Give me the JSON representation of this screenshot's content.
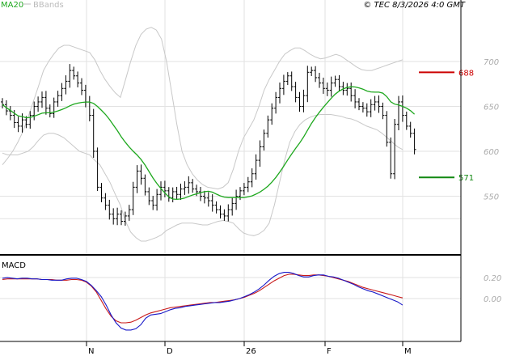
{
  "header": {
    "ma_label": "MA20",
    "bbands_label": "BBands",
    "copyright": "© TEC 8/3/2026 4:0 GMT"
  },
  "macd_panel": {
    "label": "MACD"
  },
  "colors": {
    "ma_line": "#1ea81e",
    "bbands": "#c8c8c8",
    "price_bars": "#000000",
    "macd_line": "#1818c8",
    "signal_line": "#c81818",
    "resistance": "#cc0000",
    "support": "#118811",
    "grid": "#e2e2e2",
    "axis_text": "#aaaaaa"
  },
  "chart_data": [
    {
      "type": "bar",
      "subtype": "ohlc-daily",
      "title": "",
      "y_ticks": [
        550,
        600,
        650,
        700
      ],
      "ylim": [
        505,
        730
      ],
      "x_ticks": [
        "N",
        "D",
        "26",
        "F",
        "M"
      ],
      "indicators": [
        "MA20",
        "BBands"
      ],
      "levels": [
        {
          "name": "resistance",
          "value": 688,
          "label": "688"
        },
        {
          "name": "support",
          "value": 571,
          "label": "571"
        }
      ],
      "closes": [
        652,
        645,
        640,
        632,
        628,
        635,
        630,
        640,
        650,
        655,
        660,
        648,
        642,
        655,
        662,
        670,
        678,
        690,
        684,
        676,
        668,
        655,
        640,
        600,
        560,
        548,
        540,
        530,
        525,
        530,
        522,
        528,
        535,
        560,
        578,
        570,
        555,
        545,
        540,
        552,
        560,
        556,
        548,
        555,
        552,
        558,
        560,
        565,
        558,
        555,
        550,
        548,
        545,
        540,
        535,
        530,
        528,
        535,
        542,
        550,
        556,
        560,
        566,
        575,
        590,
        605,
        620,
        635,
        648,
        660,
        670,
        678,
        684,
        672,
        660,
        650,
        662,
        688,
        690,
        682,
        676,
        670,
        668,
        676,
        680,
        672,
        668,
        670,
        662,
        655,
        650,
        648,
        644,
        652,
        655,
        650,
        640,
        610,
        575,
        630,
        655,
        640,
        628,
        620,
        602
      ],
      "bbands_upper": [
        585,
        592,
        600,
        610,
        622,
        638,
        655,
        672,
        690,
        700,
        708,
        715,
        718,
        718,
        716,
        714,
        712,
        710,
        702,
        690,
        680,
        672,
        665,
        660,
        680,
        700,
        718,
        730,
        736,
        738,
        735,
        725,
        700,
        665,
        630,
        600,
        585,
        575,
        568,
        563,
        560,
        559,
        558,
        560,
        565,
        580,
        600,
        615,
        625,
        635,
        650,
        668,
        680,
        690,
        700,
        708,
        712,
        715,
        715,
        712,
        708,
        705,
        703,
        704,
        706,
        708,
        706,
        702,
        698,
        694,
        691,
        690,
        690,
        692,
        694,
        696,
        698,
        700,
        702
      ],
      "bbands_lower": [
        598,
        596,
        596,
        596,
        598,
        600,
        605,
        612,
        618,
        620,
        620,
        618,
        615,
        610,
        605,
        600,
        598,
        596,
        590,
        585,
        575,
        565,
        552,
        540,
        522,
        510,
        504,
        500,
        500,
        502,
        504,
        507,
        512,
        515,
        518,
        520,
        520,
        520,
        519,
        518,
        518,
        520,
        522,
        523,
        522,
        520,
        514,
        509,
        507,
        506,
        508,
        512,
        520,
        540,
        565,
        590,
        610,
        622,
        630,
        635,
        638,
        640,
        641,
        641,
        641,
        640,
        639,
        637,
        636,
        634,
        631,
        628,
        626,
        624,
        620,
        615,
        610,
        605,
        602
      ],
      "macd": [
        31,
        32,
        31,
        30,
        31,
        31,
        30,
        30,
        29,
        29,
        28,
        28,
        28,
        30,
        31,
        31,
        29,
        26,
        20,
        12,
        3,
        -10,
        -25,
        -37,
        -45,
        -48,
        -48,
        -46,
        -40,
        -30,
        -25,
        -24,
        -23,
        -20,
        -17,
        -15,
        -14,
        -12,
        -11,
        -10,
        -9,
        -8,
        -7,
        -6,
        -6,
        -5,
        -4,
        -2,
        0,
        3,
        6,
        10,
        15,
        21,
        28,
        34,
        38,
        40,
        40,
        38,
        35,
        33,
        33,
        35,
        36,
        36,
        34,
        33,
        31,
        28,
        25,
        22,
        18,
        15,
        12,
        10,
        7,
        4,
        1,
        -2,
        -5,
        -10
      ],
      "macd_signal": [
        29,
        30,
        30,
        30,
        30,
        30,
        30,
        30,
        29,
        29,
        29,
        28,
        28,
        28,
        29,
        29,
        28,
        25,
        19,
        10,
        -3,
        -16,
        -27,
        -34,
        -37,
        -37,
        -36,
        -33,
        -29,
        -25,
        -22,
        -20,
        -18,
        -16,
        -14,
        -13,
        -12,
        -11,
        -10,
        -9,
        -8,
        -7,
        -6,
        -6,
        -5,
        -4,
        -3,
        -2,
        0,
        2,
        5,
        8,
        12,
        17,
        22,
        27,
        31,
        35,
        37,
        37,
        36,
        35,
        35,
        36,
        36,
        35,
        34,
        32,
        30,
        28,
        26,
        23,
        20,
        17,
        15,
        13,
        11,
        9,
        7,
        5,
        3,
        1
      ],
      "macd_ticks": [
        "0.00",
        "0.20"
      ]
    }
  ]
}
